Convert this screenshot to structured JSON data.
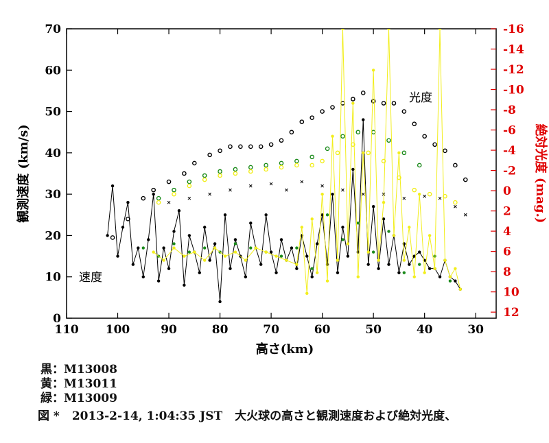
{
  "chart_data": {
    "type": "scatter",
    "title": "",
    "xlabel": "高さ(km)",
    "ylabel": "観測速度 (km/s)",
    "y2label": "絶対光度 (mag.)",
    "xlim": [
      110,
      26
    ],
    "ylim": [
      0,
      70
    ],
    "y2lim": [
      12.6,
      -16
    ],
    "xticks": [
      110,
      100,
      90,
      80,
      70,
      60,
      50,
      40,
      30
    ],
    "yticks": [
      0,
      10,
      20,
      30,
      40,
      50,
      60,
      70
    ],
    "y2ticks": [
      12,
      10,
      8,
      6,
      4,
      2,
      0,
      -2,
      -4,
      -6,
      -8,
      -10,
      -12,
      -14,
      -16
    ],
    "annotations": {
      "speed": "速度",
      "luminosity": "光度"
    },
    "colors": {
      "black": "#000000",
      "yellow": "#f2ee1c",
      "green": "#1a8a1a",
      "axis_right": "#e00000"
    },
    "series": [
      {
        "name": "M13008 光度",
        "color": "#000000",
        "marker": "open-circle",
        "x": [
          101,
          98,
          95,
          93,
          90,
          87,
          85,
          82,
          80,
          78,
          76,
          74,
          72,
          70,
          68,
          66,
          64,
          62,
          60,
          58,
          56,
          54,
          52,
          50,
          48,
          46,
          44,
          42,
          40,
          38,
          36,
          34,
          32
        ],
        "y": [
          19.5,
          24,
          29,
          31,
          33,
          35,
          37.5,
          39.5,
          40.5,
          41.5,
          41.5,
          41.5,
          41.5,
          42,
          43,
          45,
          47.5,
          48.5,
          50,
          51,
          52,
          53,
          54.5,
          52.5,
          52,
          52,
          50,
          47,
          44,
          42,
          40.5,
          37,
          33.5
        ]
      },
      {
        "name": "M13009 光度",
        "color": "#1a8a1a",
        "marker": "open-circle",
        "x": [
          92,
          89,
          86,
          83,
          80,
          77,
          74,
          71,
          68,
          65,
          62,
          59,
          56,
          53,
          50,
          47,
          44,
          41
        ],
        "y": [
          29,
          31,
          33,
          34.5,
          35.5,
          36,
          36.5,
          37,
          37.5,
          38,
          39,
          41,
          44,
          45,
          45,
          43,
          40,
          37
        ]
      },
      {
        "name": "M13011 光度",
        "color": "#f2ee1c",
        "marker": "open-circle",
        "x": [
          92,
          89,
          86,
          83,
          80,
          77,
          74,
          71,
          68,
          65,
          62,
          60,
          57,
          54,
          51,
          48,
          45,
          42,
          39,
          36,
          34
        ],
        "y": [
          28,
          30,
          32,
          33.5,
          34.5,
          35,
          35.5,
          36,
          36.5,
          37,
          37,
          38,
          40,
          42,
          40,
          38,
          34,
          31,
          30,
          29.5,
          28
        ]
      },
      {
        "name": "M13011 速度 (補助)",
        "color": "#000000",
        "marker": "x",
        "x": [
          90,
          86,
          82,
          78,
          74,
          70,
          67,
          64,
          60,
          56,
          52,
          48,
          44,
          40,
          37,
          34,
          32
        ],
        "y": [
          28,
          29,
          30,
          31,
          32,
          32.5,
          31,
          33,
          32,
          31,
          30,
          30,
          29,
          29.5,
          29,
          27,
          25
        ]
      },
      {
        "name": "M13008 速度",
        "color": "#000000",
        "marker": "filled-dot",
        "line": true,
        "x": [
          102,
          101,
          100,
          99,
          98,
          97,
          96,
          95,
          94,
          93,
          92,
          91,
          90,
          89,
          88,
          87,
          86,
          85,
          84,
          83,
          82,
          81,
          80,
          79,
          78,
          77,
          76,
          75,
          74,
          73,
          72,
          71,
          70,
          69,
          68,
          67,
          66,
          65,
          64,
          63,
          62,
          61,
          60,
          59,
          58,
          57,
          56,
          55,
          54,
          53,
          52,
          51,
          50,
          49,
          48,
          47,
          46,
          45,
          44,
          43,
          42,
          41,
          40,
          39,
          38,
          37,
          36,
          35,
          34,
          33
        ],
        "y": [
          20,
          32,
          15,
          22,
          28,
          13,
          17,
          10,
          19,
          30,
          9,
          17,
          12,
          21,
          26,
          8,
          20,
          16,
          11,
          22,
          14,
          18,
          4,
          25,
          12,
          19,
          15,
          10,
          23,
          17,
          13,
          25,
          16,
          11,
          19,
          14,
          17,
          12,
          20,
          15,
          10,
          18,
          25,
          13,
          30,
          11,
          22,
          15,
          36,
          16,
          48,
          13,
          27,
          12,
          24,
          13,
          20,
          11,
          18,
          13,
          15,
          16,
          14,
          12,
          12,
          10,
          14,
          10,
          9,
          7
        ]
      },
      {
        "name": "M13009 速度",
        "color": "#1a8a1a",
        "marker": "filled-dot",
        "x": [
          95,
          92,
          89,
          86,
          83,
          80,
          77,
          74,
          71,
          68,
          65,
          62,
          59,
          56,
          53,
          50,
          47,
          44,
          41,
          38,
          35
        ],
        "y": [
          17,
          15,
          18,
          16,
          17,
          16,
          18,
          17,
          16,
          15,
          17,
          12,
          25,
          19,
          23,
          16,
          21,
          11,
          13,
          15,
          9
        ]
      },
      {
        "name": "M13011 速度",
        "color": "#f2ee1c",
        "marker": "filled-dot",
        "line": true,
        "x": [
          93,
          91,
          89,
          87,
          85,
          83,
          81,
          79,
          77,
          75,
          73,
          71,
          69,
          67,
          65,
          64,
          63,
          62,
          61,
          60,
          59,
          58,
          57,
          56,
          55,
          54,
          53,
          52,
          51,
          50,
          49,
          48,
          47,
          46,
          45,
          44,
          43,
          42,
          41,
          40,
          39,
          38,
          37,
          36,
          35,
          34,
          33
        ],
        "y": [
          16,
          14,
          17,
          15,
          16,
          14,
          17,
          15,
          16,
          14,
          17,
          16,
          15,
          14,
          13,
          22,
          6,
          24,
          11,
          30,
          9,
          44,
          14,
          70,
          18,
          52,
          10,
          40,
          16,
          60,
          14,
          28,
          70,
          20,
          40,
          14,
          22,
          10,
          30,
          11,
          20,
          12,
          70,
          14,
          10,
          12,
          7
        ]
      }
    ]
  },
  "legend": [
    {
      "label": "黒",
      "sep": "：",
      "id": "M13008"
    },
    {
      "label": "黄",
      "sep": "：",
      "id": "M13011"
    },
    {
      "label": "緑",
      "sep": "：",
      "id": "M13009"
    }
  ],
  "caption": {
    "figure_label": "図 *",
    "datetime": "2013-2-14, 1:04:35 JST",
    "description": "大火球の高さと観測速度および絶対光度、"
  }
}
